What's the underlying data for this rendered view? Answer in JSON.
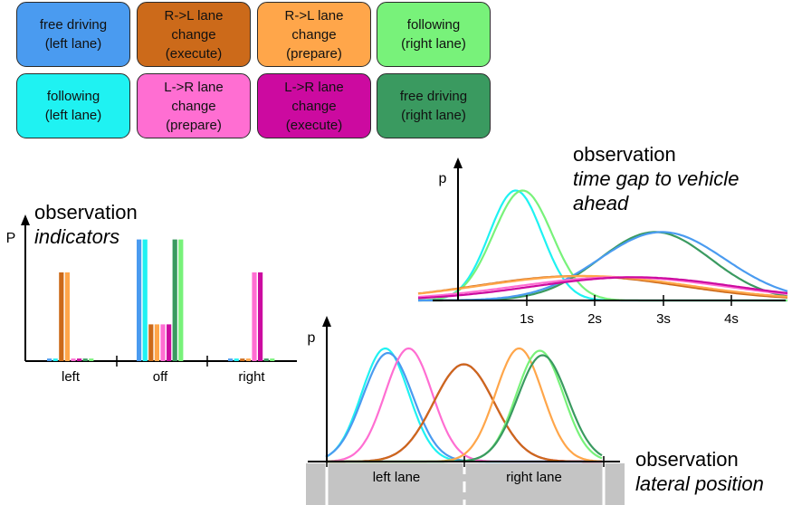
{
  "legend": [
    {
      "label": "free driving\n(left lane)",
      "color": "#4a9bf0"
    },
    {
      "label": "R->L lane\nchange\n(execute)",
      "color": "#cc6a1a"
    },
    {
      "label": "R->L lane\nchange\n(prepare)",
      "color": "#ffa64a"
    },
    {
      "label": "following\n(right lane)",
      "color": "#78f27a"
    },
    {
      "label": "following\n(left lane)",
      "color": "#1ff2f2"
    },
    {
      "label": "L->R lane\nchange\n(prepare)",
      "color": "#ff6ed2"
    },
    {
      "label": "L->R lane\nchange\n(execute)",
      "color": "#cc0aa0"
    },
    {
      "label": "free driving\n(right lane)",
      "color": "#3a9a60"
    }
  ],
  "panels": {
    "time_gap": {
      "title": "observation",
      "subtitle": "time gap to vehicle\nahead",
      "ylabel": "p"
    },
    "indicators": {
      "title": "observation",
      "subtitle": "indicators",
      "ylabel": "P"
    },
    "lateral": {
      "title": "observation",
      "subtitle": "lateral position",
      "ylabel": "p"
    }
  },
  "chart_data": [
    {
      "type": "bar",
      "title": "observation indicators",
      "ylabel": "P",
      "categories": [
        "left",
        "off",
        "right"
      ],
      "ylim": [
        0,
        1
      ],
      "series": [
        {
          "name": "free driving (left lane)",
          "values": [
            0.02,
            0.96,
            0.02
          ]
        },
        {
          "name": "following (left lane)",
          "values": [
            0.02,
            0.96,
            0.02
          ]
        },
        {
          "name": "R->L lane change (execute)",
          "values": [
            0.7,
            0.29,
            0.02
          ]
        },
        {
          "name": "R->L lane change (prepare)",
          "values": [
            0.7,
            0.29,
            0.02
          ]
        },
        {
          "name": "L->R lane change (prepare)",
          "values": [
            0.02,
            0.29,
            0.7
          ]
        },
        {
          "name": "L->R lane change (execute)",
          "values": [
            0.02,
            0.29,
            0.7
          ]
        },
        {
          "name": "free driving (right lane)",
          "values": [
            0.02,
            0.96,
            0.02
          ]
        },
        {
          "name": "following (right lane)",
          "values": [
            0.02,
            0.96,
            0.02
          ]
        }
      ]
    },
    {
      "type": "line",
      "title": "observation time gap to vehicle ahead",
      "ylabel": "p",
      "xticks": [
        "1s",
        "2s",
        "3s",
        "4s"
      ],
      "xlim": [
        -0.5,
        4.8
      ],
      "series": [
        {
          "name": "following (left lane)",
          "color": "#1ff2f2",
          "mu": 0.9,
          "sigma": 0.38,
          "amp": 0.9
        },
        {
          "name": "following (right lane)",
          "color": "#78f27a",
          "mu": 1.0,
          "sigma": 0.42,
          "amp": 0.9
        },
        {
          "name": "free driving (right lane)",
          "color": "#3a9a60",
          "mu": 2.9,
          "sigma": 0.8,
          "amp": 0.56
        },
        {
          "name": "free driving (left lane)",
          "color": "#4a9bf0",
          "mu": 3.0,
          "sigma": 0.9,
          "amp": 0.56
        },
        {
          "name": "R->L lane change (execute)",
          "color": "#cc6a1a",
          "mu": 1.8,
          "sigma": 1.45,
          "amp": 0.2
        },
        {
          "name": "R->L lane change (prepare)",
          "color": "#ffa64a",
          "mu": 1.9,
          "sigma": 1.5,
          "amp": 0.2
        },
        {
          "name": "L->R lane change (prepare)",
          "color": "#ff6ed2",
          "mu": 2.4,
          "sigma": 1.5,
          "amp": 0.19
        },
        {
          "name": "L->R lane change (execute)",
          "color": "#cc0aa0",
          "mu": 2.6,
          "sigma": 1.45,
          "amp": 0.19
        }
      ]
    },
    {
      "type": "line",
      "title": "observation lateral position",
      "ylabel": "p",
      "xticks": [
        "left lane",
        "right lane"
      ],
      "xlim": [
        0,
        2
      ],
      "series": [
        {
          "name": "following (left lane)",
          "color": "#1ff2f2",
          "mu": 0.43,
          "sigma": 0.17,
          "amp": 1.0
        },
        {
          "name": "free driving (left lane)",
          "color": "#4a9bf0",
          "mu": 0.45,
          "sigma": 0.18,
          "amp": 0.96
        },
        {
          "name": "L->R lane change (prepare)",
          "color": "#ff6ed2",
          "mu": 0.6,
          "sigma": 0.17,
          "amp": 1.0
        },
        {
          "name": "L->R lane change (execute)",
          "color": "#cc0aa0",
          "mu": 1.0,
          "sigma": 0.22,
          "amp": 0.86
        },
        {
          "name": "R->L lane change (execute)",
          "color": "#cc6a1a",
          "mu": 1.0,
          "sigma": 0.22,
          "amp": 0.86
        },
        {
          "name": "R->L lane change (prepare)",
          "color": "#ffa64a",
          "mu": 1.4,
          "sigma": 0.17,
          "amp": 1.0
        },
        {
          "name": "following (right lane)",
          "color": "#78f27a",
          "mu": 1.55,
          "sigma": 0.17,
          "amp": 0.98
        },
        {
          "name": "free driving (right lane)",
          "color": "#3a9a60",
          "mu": 1.57,
          "sigma": 0.18,
          "amp": 0.94
        }
      ]
    }
  ]
}
